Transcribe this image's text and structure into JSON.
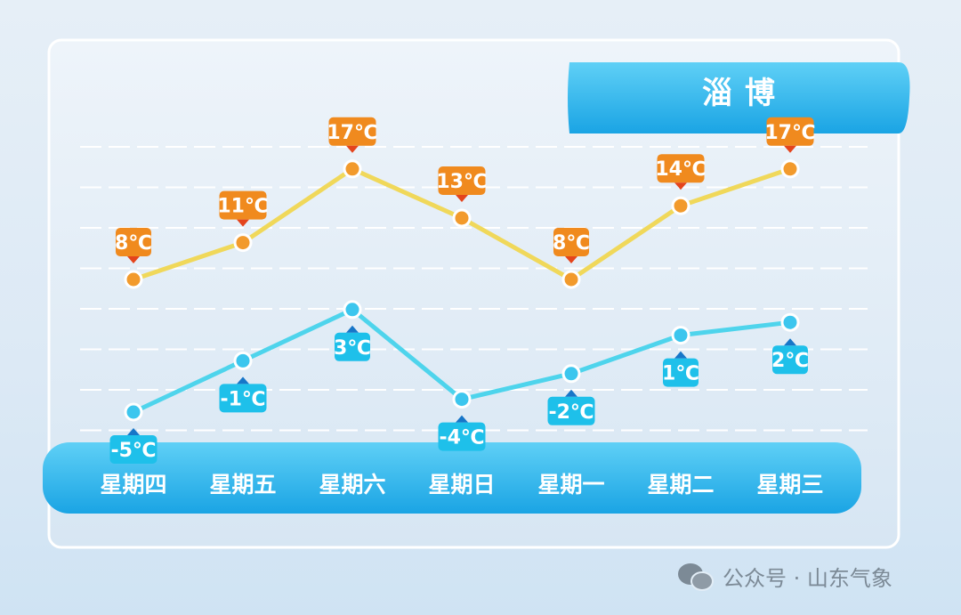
{
  "title": "淄博",
  "watermark": "公众号 · 山东气象",
  "colors": {
    "high_line": "#f0d85a",
    "high_label": "#f08a1e",
    "low_line": "#4ed4ec",
    "low_label": "#1ec0ea",
    "day_band": "#2ab4ea",
    "title_band": "#1fa8e6"
  },
  "chart_data": {
    "type": "line",
    "categories": [
      "星期四",
      "星期五",
      "星期六",
      "星期日",
      "星期一",
      "星期二",
      "星期三"
    ],
    "unit": "℃",
    "series": [
      {
        "values": [
          8,
          11,
          17,
          13,
          8,
          14,
          17
        ]
      },
      {
        "values": [
          -5,
          -1,
          3,
          -4,
          -2,
          1,
          2
        ]
      }
    ],
    "grid": true
  }
}
